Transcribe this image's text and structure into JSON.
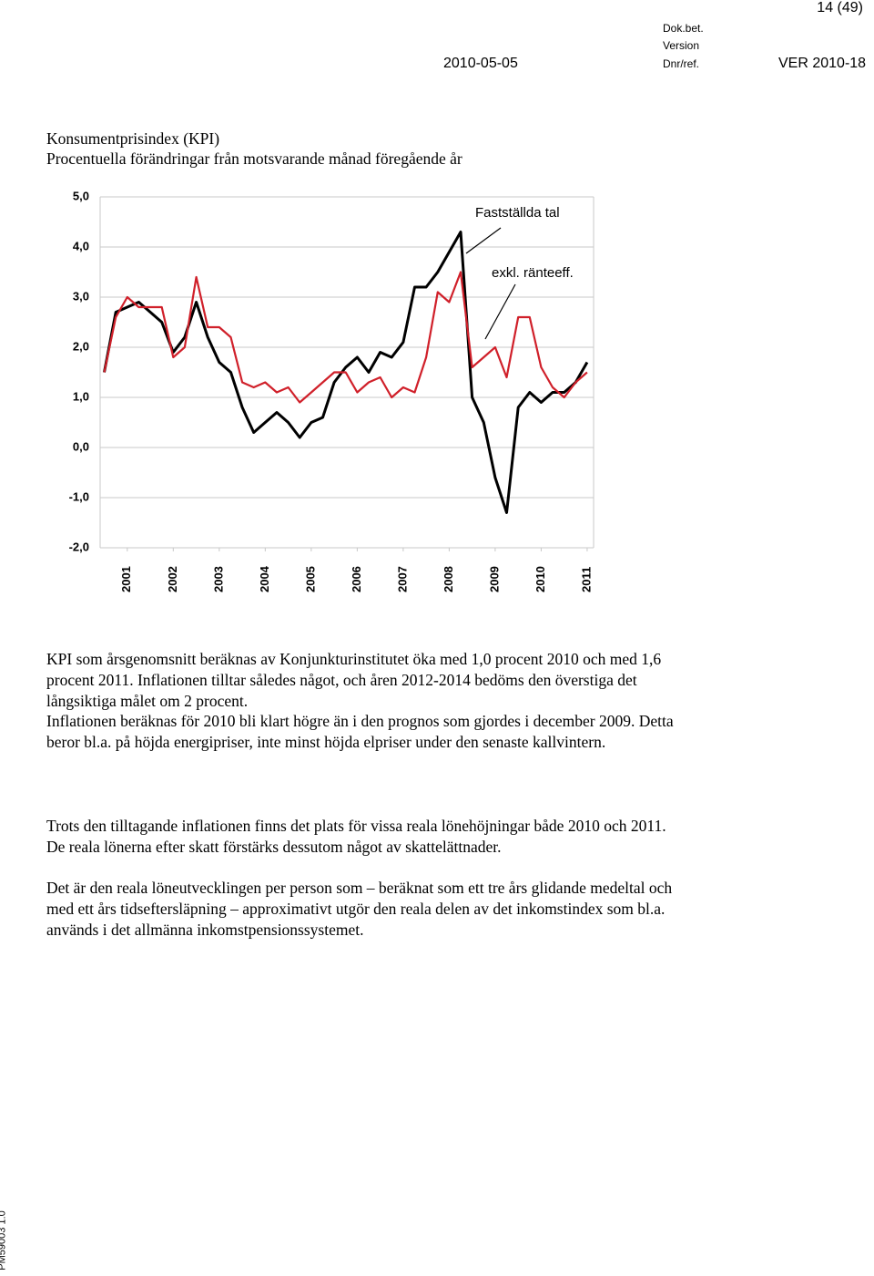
{
  "header": {
    "page": "14 (49)",
    "doc_label": "Dok.bet.",
    "version_label": "Version",
    "date": "2010-05-05",
    "ref_label": "Dnr/ref.",
    "ref": "VER 2010-18"
  },
  "side_text": "PM59003 1.0",
  "chart_data": {
    "type": "line",
    "title": "Konsumentprisindex (KPI)",
    "subtitle": "Procentuella förändringar från motsvarande månad föregående år",
    "x": [
      2000.5,
      2000.75,
      2001,
      2001.25,
      2001.5,
      2001.75,
      2002,
      2002.25,
      2002.5,
      2002.75,
      2003,
      2003.25,
      2003.5,
      2003.75,
      2004,
      2004.25,
      2004.5,
      2004.75,
      2005,
      2005.25,
      2005.5,
      2005.75,
      2006,
      2006.25,
      2006.5,
      2006.75,
      2007,
      2007.25,
      2007.5,
      2007.75,
      2008,
      2008.25,
      2008.5,
      2008.75,
      2009,
      2009.25,
      2009.5,
      2009.75,
      2010,
      2010.25,
      2010.5,
      2010.75,
      2011
    ],
    "series": [
      {
        "name": "Fastställda tal",
        "color": "#000000",
        "values": [
          1.5,
          2.7,
          2.8,
          2.9,
          2.7,
          2.5,
          1.9,
          2.2,
          2.9,
          2.2,
          1.7,
          1.5,
          0.8,
          0.3,
          0.5,
          0.7,
          0.5,
          0.2,
          0.5,
          0.6,
          1.3,
          1.6,
          1.8,
          1.5,
          1.9,
          1.8,
          2.1,
          3.2,
          3.2,
          3.5,
          3.9,
          4.3,
          1.0,
          0.5,
          -0.6,
          -1.3,
          0.8,
          1.1,
          0.9,
          1.1,
          1.1,
          1.3,
          1.7
        ]
      },
      {
        "name": "exkl. ränteeff.",
        "color": "#d0202a",
        "values": [
          1.5,
          2.6,
          3.0,
          2.8,
          2.8,
          2.8,
          1.8,
          2.0,
          3.4,
          2.4,
          2.4,
          2.2,
          1.3,
          1.2,
          1.3,
          1.1,
          1.2,
          0.9,
          1.1,
          1.3,
          1.5,
          1.5,
          1.1,
          1.3,
          1.4,
          1.0,
          1.2,
          1.1,
          1.8,
          3.1,
          2.9,
          3.5,
          1.6,
          1.8,
          2.0,
          1.4,
          2.6,
          2.6,
          1.6,
          1.2,
          1.0,
          1.3,
          1.5
        ]
      }
    ],
    "xlim": [
      2000.41,
      2011.14
    ],
    "xticks": [
      2001,
      2002,
      2003,
      2004,
      2005,
      2006,
      2007,
      2008,
      2009,
      2010,
      2011
    ],
    "ylim": [
      -2,
      5
    ],
    "yticks": [
      {
        "value": -2,
        "label": "-2,0"
      },
      {
        "value": -1,
        "label": "-1,0"
      },
      {
        "value": 0,
        "label": "0,0"
      },
      {
        "value": 1,
        "label": "1,0"
      },
      {
        "value": 2,
        "label": "2,0"
      },
      {
        "value": 3,
        "label": "3,0"
      },
      {
        "value": 4,
        "label": "4,0"
      },
      {
        "value": 5,
        "label": "5,0"
      }
    ],
    "grid": true
  },
  "paragraphs": [
    "KPI som årsgenomsnitt beräknas av Konjunkturinstitutet öka med 1,0 procent 2010 och med 1,6 procent 2011. Inflationen tilltar således något, och åren 2012-2014 bedöms den överstiga det långsiktiga målet om 2 procent.",
    "Inflationen beräknas för 2010 bli klart högre än i den prognos som gjordes i december 2009. Detta beror bl.a. på höjda energipriser, inte minst höjda elpriser under den senaste kallvintern.",
    "Trots den tilltagande inflationen finns det plats för vissa reala lönehöjningar både 2010 och 2011. De reala lönerna efter skatt förstärks dessutom något av skattelättnader.",
    "Det är den reala löneutvecklingen per person som – beräknat som ett tre års glidande medeltal och med ett års tidseftersläpning – approximativt utgör den reala delen av det inkomstindex som bl.a. används i det allmänna inkomstpensionssystemet."
  ]
}
